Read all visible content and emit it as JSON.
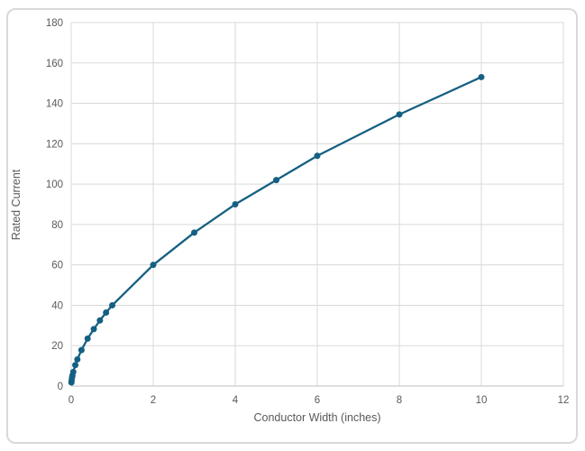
{
  "chart_data": {
    "type": "scatter",
    "title": "",
    "xlabel": "Conductor Width (inches)",
    "ylabel": "Rated Current",
    "xlim": [
      0,
      12
    ],
    "ylim": [
      0,
      180
    ],
    "x_ticks": [
      0,
      2,
      4,
      6,
      8,
      10,
      12
    ],
    "y_ticks": [
      0,
      20,
      40,
      60,
      80,
      100,
      120,
      140,
      160,
      180
    ],
    "grid": true,
    "legend_position": "none",
    "line_style": "solid-with-markers",
    "series": [
      {
        "name": "Rated Current",
        "color": "#156082",
        "marker": "circle",
        "points": [
          [
            0.005,
            1.8
          ],
          [
            0.01,
            2.7
          ],
          [
            0.02,
            4.1
          ],
          [
            0.03,
            5.2
          ],
          [
            0.05,
            7.0
          ],
          [
            0.1,
            10.4
          ],
          [
            0.15,
            13.2
          ],
          [
            0.25,
            17.8
          ],
          [
            0.4,
            23.5
          ],
          [
            0.55,
            28.2
          ],
          [
            0.7,
            32.5
          ],
          [
            0.85,
            36.4
          ],
          [
            1,
            40
          ],
          [
            2,
            60
          ],
          [
            3,
            76
          ],
          [
            4,
            90
          ],
          [
            5,
            102
          ],
          [
            6,
            114
          ],
          [
            8,
            134.5
          ],
          [
            10,
            153
          ]
        ]
      }
    ],
    "colors": {
      "gridline": "#d9d9d9",
      "axis_line": "#bfbfbf",
      "tick_label": "#595959",
      "axis_title": "#595959",
      "frame_border": "#d9d9d9",
      "background": "#ffffff"
    }
  }
}
